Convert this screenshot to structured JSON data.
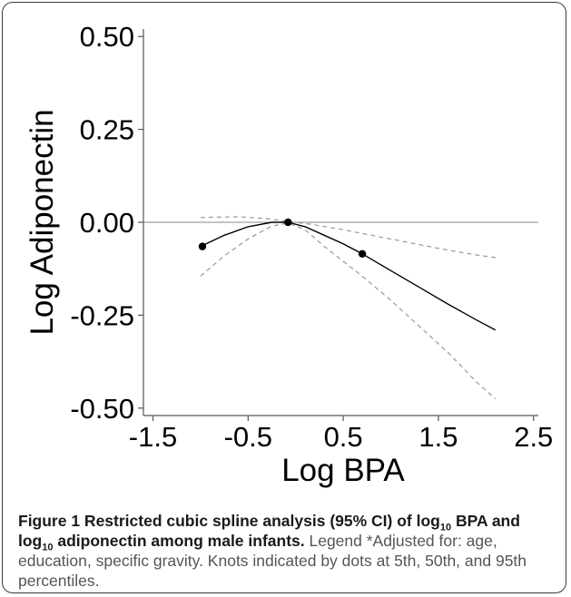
{
  "chart_data": {
    "type": "line",
    "title": "",
    "xlabel": "Log BPA",
    "ylabel": "Log Adiponectin",
    "xlim": [
      -1.6,
      2.55
    ],
    "ylim": [
      -0.52,
      0.52
    ],
    "xticks": [
      -1.5,
      -0.5,
      0.5,
      1.5,
      2.5
    ],
    "xtick_labels": [
      "-1.5",
      "-0.5",
      "0.5",
      "1.5",
      "2.5"
    ],
    "yticks": [
      0.5,
      0.25,
      0.0,
      -0.25,
      -0.5
    ],
    "ytick_labels": [
      "0.50",
      "0.25",
      "0.00",
      "-0.25",
      "-0.50"
    ],
    "reference_line_y": 0,
    "series": [
      {
        "style": "solid",
        "color": "#000000",
        "x": [
          -1.0,
          -0.75,
          -0.5,
          -0.25,
          -0.08,
          0.1,
          0.3,
          0.5,
          0.7,
          1.0,
          1.3,
          1.6,
          1.9,
          2.1
        ],
        "y": [
          -0.065,
          -0.035,
          -0.012,
          0.0,
          0.0,
          -0.012,
          -0.035,
          -0.058,
          -0.085,
          -0.13,
          -0.175,
          -0.22,
          -0.263,
          -0.29
        ]
      },
      {
        "style": "dashed",
        "color": "#999999",
        "x": [
          -1.0,
          -0.6,
          -0.3,
          -0.08,
          0.15,
          0.5,
          0.7,
          1.0,
          1.3,
          1.6,
          1.9,
          2.1
        ],
        "y": [
          0.013,
          0.015,
          0.01,
          0.002,
          -0.005,
          -0.02,
          -0.03,
          -0.045,
          -0.06,
          -0.075,
          -0.088,
          -0.095
        ]
      },
      {
        "style": "dashed",
        "color": "#999999",
        "x": [
          -1.0,
          -0.75,
          -0.5,
          -0.25,
          -0.08,
          0.1,
          0.3,
          0.5,
          0.7,
          1.0,
          1.3,
          1.6,
          1.9,
          2.1
        ],
        "y": [
          -0.145,
          -0.09,
          -0.045,
          -0.01,
          -0.002,
          -0.02,
          -0.065,
          -0.105,
          -0.145,
          -0.21,
          -0.28,
          -0.35,
          -0.43,
          -0.475
        ]
      }
    ],
    "knots": {
      "x": [
        -0.98,
        -0.08,
        0.7
      ],
      "y": [
        -0.065,
        0.0,
        -0.085
      ]
    }
  },
  "caption": {
    "bold_prefix": "Figure 1 Restricted cubic spline analysis (95% CI) of log",
    "bold_sub1": "10",
    "bold_mid": " BPA and log",
    "bold_sub2": "10",
    "bold_suffix": " adiponectin among male infants.",
    "text": " Legend *Adjusted for: age, education, specific gravity. Knots indicated by dots at 5th, 50th, and 95th percentiles."
  }
}
